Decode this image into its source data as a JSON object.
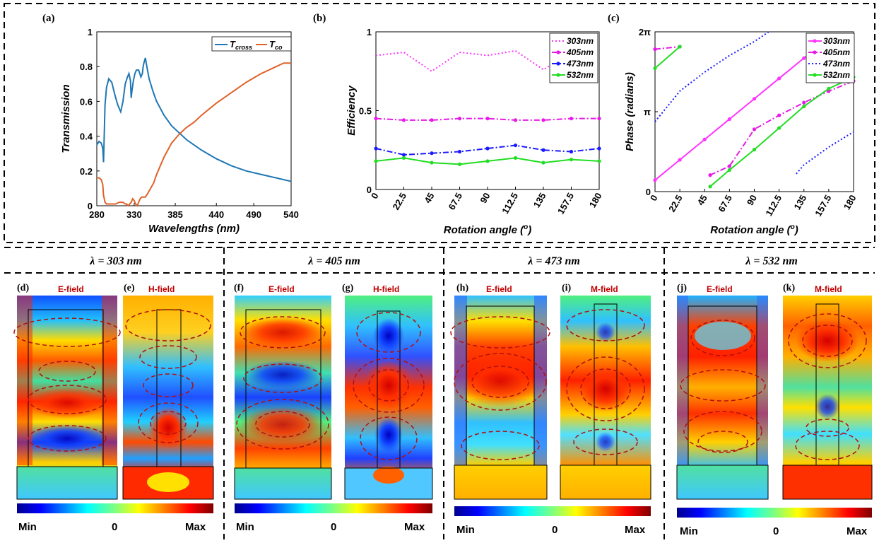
{
  "panels": {
    "a": "(a)",
    "b": "(b)",
    "c": "(c)",
    "d": "(d)",
    "e": "(e)",
    "f": "(f)",
    "g": "(g)",
    "h": "(h)",
    "i": "(i)",
    "j": "(j)",
    "k": "(k)"
  },
  "chart_data": [
    {
      "id": "a",
      "type": "line",
      "xlabel": "Wavelengths (nm)",
      "ylabel": "Transmission",
      "xlim": [
        280,
        540
      ],
      "ylim": [
        0,
        1
      ],
      "xticks": [
        "280",
        "330",
        "385",
        "440",
        "490",
        "540"
      ],
      "xtick_values": [
        280,
        330,
        385,
        440,
        490,
        540
      ],
      "yticks": [
        "0",
        "0.2",
        "0.4",
        "0.6",
        "0.8",
        "1"
      ],
      "ytick_values": [
        0,
        0.2,
        0.4,
        0.6,
        0.8,
        1
      ],
      "legend": [
        "T_cross",
        "T_co"
      ],
      "legend_position": "top-right",
      "series": [
        {
          "name": "T_cross",
          "color": "#1f77b4",
          "x": [
            280,
            283,
            286,
            288,
            289,
            291,
            293,
            296,
            300,
            304,
            308,
            312,
            315,
            318,
            321,
            323,
            325,
            326,
            327,
            329,
            331,
            333,
            336,
            339,
            341,
            342,
            343,
            345,
            347,
            350,
            355,
            360,
            370,
            380,
            390,
            400,
            410,
            420,
            440,
            460,
            480,
            500,
            520,
            540
          ],
          "y": [
            0.35,
            0.37,
            0.36,
            0.33,
            0.25,
            0.58,
            0.68,
            0.73,
            0.71,
            0.64,
            0.58,
            0.54,
            0.6,
            0.7,
            0.74,
            0.76,
            0.72,
            0.62,
            0.66,
            0.72,
            0.76,
            0.78,
            0.78,
            0.74,
            0.76,
            0.8,
            0.82,
            0.85,
            0.8,
            0.73,
            0.66,
            0.6,
            0.52,
            0.46,
            0.42,
            0.38,
            0.35,
            0.32,
            0.27,
            0.23,
            0.2,
            0.18,
            0.16,
            0.14
          ]
        },
        {
          "name": "T_co",
          "color": "#e0622a",
          "x": [
            280,
            283,
            286,
            288,
            289,
            291,
            293,
            296,
            300,
            305,
            310,
            315,
            318,
            320,
            322,
            324,
            326,
            328,
            330,
            332,
            334,
            336,
            338,
            340,
            342,
            345,
            348,
            352,
            356,
            360,
            365,
            370,
            380,
            390,
            400,
            410,
            420,
            440,
            460,
            480,
            500,
            510,
            520,
            530,
            540
          ],
          "y": [
            0.16,
            0.16,
            0.15,
            0.12,
            0.06,
            0.02,
            0.01,
            0.01,
            0.01,
            0.01,
            0.02,
            0.02,
            0.01,
            0.01,
            0.0,
            0.01,
            0.02,
            0.04,
            0.03,
            0.01,
            0.0,
            0.02,
            0.04,
            0.05,
            0.05,
            0.05,
            0.07,
            0.1,
            0.13,
            0.18,
            0.23,
            0.28,
            0.36,
            0.41,
            0.45,
            0.48,
            0.52,
            0.59,
            0.65,
            0.71,
            0.76,
            0.78,
            0.8,
            0.82,
            0.82
          ]
        }
      ]
    },
    {
      "id": "b",
      "type": "line",
      "xlabel": "Rotation angle (o)",
      "ylabel": "Efficiency",
      "x": [
        0,
        22.5,
        45,
        67.5,
        90,
        112.5,
        135,
        157.5,
        180
      ],
      "xticks": [
        "0",
        "22.5",
        "45",
        "67.5",
        "90",
        "112.5",
        "135",
        "157.5",
        "180"
      ],
      "yticks": [
        "0",
        "0.5",
        "1"
      ],
      "ytick_values": [
        0,
        0.5,
        1
      ],
      "ylim": [
        0,
        1
      ],
      "legend_position": "top-right",
      "series": [
        {
          "name": "303nm",
          "color": "#ff33ff",
          "style": "dotted",
          "values": [
            0.85,
            0.87,
            0.75,
            0.87,
            0.85,
            0.88,
            0.76,
            0.87,
            0.85
          ]
        },
        {
          "name": "405nm",
          "color": "#e619e6",
          "style": "dashdot",
          "values": [
            0.45,
            0.44,
            0.44,
            0.45,
            0.45,
            0.44,
            0.44,
            0.45,
            0.45
          ]
        },
        {
          "name": "473nm",
          "color": "#1a1aff",
          "style": "dashdot",
          "values": [
            0.26,
            0.22,
            0.23,
            0.24,
            0.26,
            0.28,
            0.25,
            0.24,
            0.26
          ]
        },
        {
          "name": "532nm",
          "color": "#22dd22",
          "style": "solid",
          "values": [
            0.18,
            0.2,
            0.17,
            0.16,
            0.18,
            0.2,
            0.17,
            0.19,
            0.18
          ]
        }
      ]
    },
    {
      "id": "c",
      "type": "line",
      "xlabel": "Rotation angle (o)",
      "ylabel": "Phase (radians)",
      "x": [
        0,
        22.5,
        45,
        67.5,
        90,
        112.5,
        135,
        157.5,
        180
      ],
      "xticks": [
        "0",
        "22.5",
        "45",
        "67.5",
        "90",
        "112.5",
        "135",
        "157.5",
        "180"
      ],
      "yticks": [
        "0",
        "π",
        "2π"
      ],
      "ytick_values": [
        0,
        3.1416,
        6.2832
      ],
      "ylim": [
        0,
        6.2832
      ],
      "legend_position": "top-right",
      "series": [
        {
          "name": "303nm",
          "color": "#ff33ff",
          "style": "solid",
          "x": [
            0,
            22.5,
            45,
            67.5,
            90,
            112.5,
            135,
            157.5,
            180
          ],
          "values": [
            0.45,
            1.25,
            2.05,
            2.85,
            3.65,
            4.45,
            5.25,
            6.0,
            null
          ]
        },
        {
          "name": "405nm",
          "color": "#e619e6",
          "style": "dashdot",
          "x": [
            0,
            22.5,
            45,
            50,
            67.5,
            90,
            112.5,
            135,
            157.5,
            180
          ],
          "values": [
            5.6,
            5.7,
            null,
            0.65,
            1.0,
            2.45,
            3.0,
            3.5,
            3.95,
            4.35
          ]
        },
        {
          "name": "473nm",
          "color": "#1a1aff",
          "style": "dotted",
          "x": [
            0,
            22.5,
            45,
            67.5,
            90,
            103,
            112.5,
            128,
            135,
            157.5,
            180
          ],
          "values": [
            2.75,
            3.95,
            4.7,
            5.35,
            5.9,
            6.28,
            null,
            0.7,
            1.05,
            1.75,
            2.35
          ]
        },
        {
          "name": "532nm",
          "color": "#22dd22",
          "style": "solid",
          "x": [
            0,
            22.5,
            45,
            50,
            67.5,
            90,
            112.5,
            135,
            157.5,
            180
          ],
          "values": [
            4.85,
            5.7,
            null,
            0.2,
            0.85,
            1.65,
            2.5,
            3.35,
            4.05,
            4.5
          ]
        }
      ]
    }
  ],
  "fields": {
    "headers": [
      "λ = 303 nm",
      "λ = 405 nm",
      "λ = 473 nm",
      "λ = 532 nm"
    ],
    "e_label": "E-field",
    "h_label": "H-field",
    "m_label": "M-field",
    "colorbar": {
      "min": "Min",
      "zero": "0",
      "max": "Max"
    }
  }
}
